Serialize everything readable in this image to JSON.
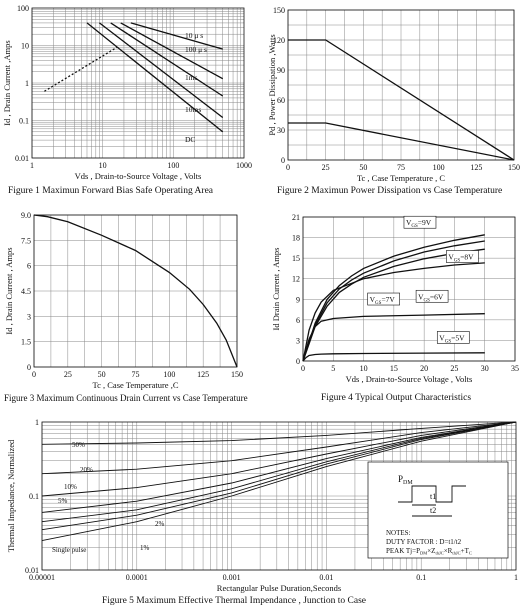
{
  "chart_data": [
    {
      "id": "fig1",
      "type": "line",
      "caption": "Figure   1    Maximun Forward Bias Safe Operating Area",
      "xlabel": "Vds , Drain-to-Source Voltage , Volts",
      "ylabel": "Id , Drain Current ,Amps",
      "xscale": "log",
      "yscale": "log",
      "xlim": [
        1,
        1000
      ],
      "ylim": [
        0.01,
        100
      ],
      "xticks": [
        1,
        10,
        100,
        1000
      ],
      "yticks": [
        0.01,
        0.1,
        1,
        10,
        100
      ],
      "xtick_labels": [
        "1",
        "10",
        "100",
        "1000"
      ],
      "ytick_labels": [
        "0.01",
        "0.1",
        "1",
        "10",
        "100"
      ],
      "series": [
        {
          "name": "",
          "style": "dotted",
          "x": [
            1.5,
            16
          ],
          "y": [
            0.6,
            9
          ]
        },
        {
          "name": "10 μ s",
          "x": [
            25,
            500
          ],
          "y": [
            40,
            8
          ]
        },
        {
          "name": "100 μ s",
          "x": [
            18,
            500
          ],
          "y": [
            40,
            1.3
          ]
        },
        {
          "name": "1ms",
          "x": [
            13,
            500
          ],
          "y": [
            40,
            0.45
          ]
        },
        {
          "name": "10ms",
          "x": [
            9,
            500
          ],
          "y": [
            40,
            0.12
          ]
        },
        {
          "name": "DC",
          "x": [
            6,
            500
          ],
          "y": [
            40,
            0.05
          ]
        }
      ],
      "annotations": [
        "10 μ s",
        "100 μ s",
        "1ms",
        "10ms",
        "DC"
      ]
    },
    {
      "id": "fig2",
      "type": "line",
      "caption": "Figure   2    Maximun Power Dissipation vs Case Temperature",
      "xlabel": "Tc , Case Temperature , C",
      "ylabel": "Pd , Power Dissipation ,Watts",
      "xlim": [
        0,
        150
      ],
      "ylim": [
        0,
        150
      ],
      "xticks": [
        0,
        25,
        50,
        75,
        100,
        125,
        150
      ],
      "yticks": [
        0,
        30,
        60,
        90,
        120,
        150
      ],
      "series": [
        {
          "name": "",
          "x": [
            0,
            25,
            150
          ],
          "y": [
            120,
            120,
            0
          ]
        },
        {
          "name": "",
          "x": [
            0,
            25,
            150
          ],
          "y": [
            37,
            37,
            0
          ]
        }
      ]
    },
    {
      "id": "fig3",
      "type": "line",
      "caption": "Figure    3    Maximum Continuous Drain Current vs Case Temperature",
      "xlabel": "Tc  ,  Case  Temperature ,C",
      "ylabel": "Id  ,  Drain  Current  ,  Amps",
      "xlim": [
        0,
        150
      ],
      "ylim": [
        0,
        9
      ],
      "xticks": [
        0,
        25,
        50,
        75,
        100,
        125,
        150
      ],
      "yticks": [
        0,
        1.5,
        3,
        4.5,
        6,
        7.5,
        9
      ],
      "xtick_labels": [
        "0",
        "25",
        "50",
        "75",
        "100",
        "125",
        "150"
      ],
      "ytick_labels": [
        "0",
        "1.5",
        "3",
        "4.5",
        "6",
        "7.5",
        "9.0"
      ],
      "series": [
        {
          "name": "",
          "x": [
            0,
            10,
            25,
            50,
            75,
            100,
            115,
            125,
            135,
            142,
            146,
            150
          ],
          "y": [
            9.0,
            8.9,
            8.6,
            7.8,
            6.9,
            5.6,
            4.6,
            3.7,
            2.6,
            1.6,
            0.8,
            0
          ]
        }
      ]
    },
    {
      "id": "fig4",
      "type": "line",
      "caption": "Figure    4    Typical Output Characteristics",
      "xlabel": "Vds , Drain-to-Source Voltage , Volts",
      "ylabel": "Id Drain Current , Amps",
      "xlim": [
        0,
        35
      ],
      "ylim": [
        0,
        21
      ],
      "xticks": [
        0,
        5,
        10,
        15,
        20,
        25,
        30,
        35
      ],
      "yticks": [
        0,
        3,
        6,
        9,
        12,
        15,
        18,
        21
      ],
      "series": [
        {
          "name": "V_GS=9V",
          "x": [
            0,
            2,
            4,
            6,
            8,
            10,
            15,
            20,
            25,
            30
          ],
          "y": [
            0,
            5.5,
            9,
            11,
            12.4,
            13.5,
            15.3,
            16.6,
            17.6,
            18.4
          ]
        },
        {
          "name": "V_GS=8V",
          "x": [
            0,
            2,
            4,
            6,
            8,
            10,
            15,
            20,
            25,
            30
          ],
          "y": [
            0,
            5.2,
            8.5,
            10.5,
            11.8,
            12.8,
            14.6,
            15.9,
            16.8,
            17.5
          ]
        },
        {
          "name": "V_GS=7V",
          "x": [
            0,
            2,
            4,
            6,
            8,
            10,
            15,
            20,
            25,
            30
          ],
          "y": [
            0,
            5,
            8,
            10,
            11.2,
            12.2,
            13.8,
            14.9,
            15.7,
            16.3
          ]
        },
        {
          "name": "V_GS=6V",
          "x": [
            0,
            1,
            2,
            3,
            5,
            10,
            15,
            20,
            25,
            30
          ],
          "y": [
            0,
            4.5,
            7,
            8.6,
            10.3,
            12,
            12.9,
            13.5,
            14,
            14.3
          ]
        },
        {
          "name": "",
          "x": [
            0,
            1,
            2,
            3,
            5,
            10,
            20,
            30
          ],
          "y": [
            0,
            3.2,
            5,
            5.8,
            6.2,
            6.5,
            6.7,
            6.9
          ]
        },
        {
          "name": "V_GS=5V",
          "x": [
            0,
            0.5,
            1,
            2,
            3,
            5,
            10,
            20,
            30
          ],
          "y": [
            0,
            0.5,
            0.8,
            0.95,
            1.0,
            1.05,
            1.1,
            1.15,
            1.2
          ]
        }
      ],
      "legend_labels": [
        {
          "main": "V",
          "sub": "GS",
          "rest": "=9V",
          "x": 17,
          "y": 19.8
        },
        {
          "main": "V",
          "sub": "GS",
          "rest": "=8V",
          "x": 24,
          "y": 14.8
        },
        {
          "main": "V",
          "sub": "GS",
          "rest": "=7V",
          "x": 11,
          "y": 8.6
        },
        {
          "main": "V",
          "sub": "GS",
          "rest": "=6V",
          "x": 19,
          "y": 9.0
        },
        {
          "main": "V",
          "sub": "GS",
          "rest": "=5V",
          "x": 22.5,
          "y": 3.0
        }
      ]
    },
    {
      "id": "fig5",
      "type": "line",
      "caption": "Figure    5    Maximum Effective Thermal Impendance , Junction to Case",
      "xlabel": "Rectangular Pulse Duration,Seconds",
      "ylabel": "Thermal Impedance, Normalized",
      "xscale": "log",
      "yscale": "log",
      "xlim": [
        1e-05,
        1
      ],
      "ylim": [
        0.01,
        1
      ],
      "xticks": [
        1e-05,
        0.0001,
        0.001,
        0.01,
        0.1,
        1
      ],
      "yticks": [
        0.01,
        0.1,
        1
      ],
      "xtick_labels": [
        "0.00001",
        "0.0001",
        "0.001",
        "0.01",
        "0.1",
        "1"
      ],
      "ytick_labels": [
        "0.01",
        "0.1",
        "1"
      ],
      "series": [
        {
          "name": "50%",
          "x": [
            1e-05,
            0.0001,
            0.001,
            0.01,
            0.1,
            1
          ],
          "y": [
            0.5,
            0.52,
            0.56,
            0.66,
            0.82,
            1.0
          ]
        },
        {
          "name": "20%",
          "x": [
            1e-05,
            0.0001,
            0.001,
            0.01,
            0.1,
            1
          ],
          "y": [
            0.2,
            0.23,
            0.3,
            0.46,
            0.72,
            1.0
          ]
        },
        {
          "name": "10%",
          "x": [
            1e-05,
            0.0001,
            0.001,
            0.01,
            0.1,
            1
          ],
          "y": [
            0.1,
            0.13,
            0.2,
            0.37,
            0.66,
            1.0
          ]
        },
        {
          "name": "5%",
          "x": [
            1e-05,
            0.0001,
            0.001,
            0.01,
            0.1,
            1
          ],
          "y": [
            0.06,
            0.085,
            0.15,
            0.32,
            0.62,
            1.0
          ]
        },
        {
          "name": "2%",
          "x": [
            1e-05,
            0.0001,
            0.001,
            0.01,
            0.1,
            1
          ],
          "y": [
            0.045,
            0.065,
            0.125,
            0.29,
            0.6,
            1.0
          ]
        },
        {
          "name": "1%",
          "x": [
            1e-05,
            0.0001,
            0.001,
            0.01,
            0.1,
            1
          ],
          "y": [
            0.035,
            0.055,
            0.11,
            0.27,
            0.58,
            1.0
          ]
        },
        {
          "name": "Single pulse",
          "x": [
            1e-05,
            0.0001,
            0.001,
            0.01,
            0.1,
            1
          ],
          "y": [
            0.025,
            0.045,
            0.1,
            0.25,
            0.55,
            1.0
          ]
        }
      ],
      "inset": {
        "pdm_label": "P",
        "pdm_sub": "DM",
        "t1": "t1",
        "t2": "t2",
        "notes_title": "NOTES:",
        "note1": "DUTY FACTOR : D=t1/t2",
        "note2": "PEAK Tj=P",
        "note2_sub1": "DM",
        "note2_mid": "×Z",
        "note2_sub2": "thJC",
        "note2_mid2": "×R",
        "note2_sub3": "thJC",
        "note2_end": "+T",
        "note2_sub4": "C"
      }
    }
  ]
}
